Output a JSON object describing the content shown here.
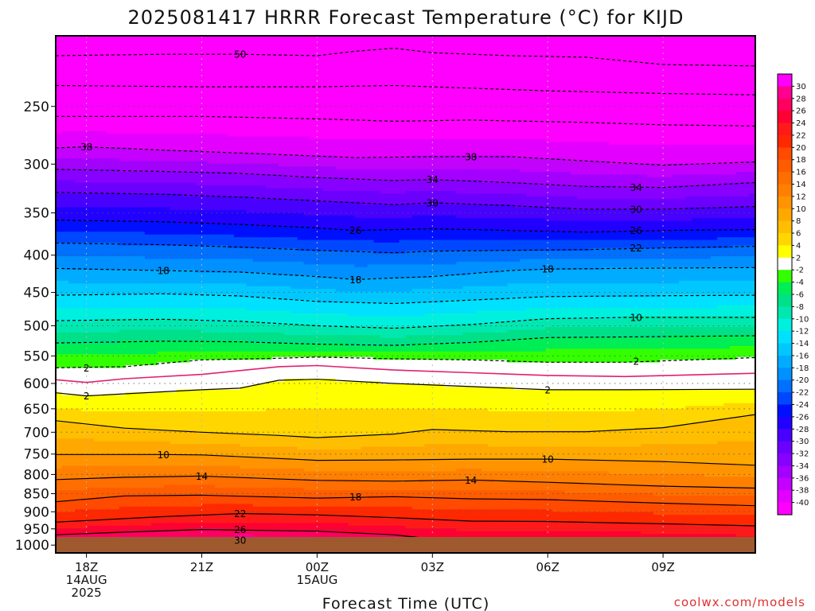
{
  "chart_data": {
    "type": "contour",
    "title": "2025081417 HRRR Forecast Temperature (°C) for KIJD",
    "xlabel": "Forecast Time (UTC)",
    "credit": "coolwx.com/models",
    "y_axis": {
      "scale": "log-pressure",
      "range_hpa": [
        1025,
        200
      ],
      "ticks": [
        250,
        300,
        350,
        400,
        450,
        500,
        550,
        600,
        650,
        700,
        750,
        800,
        850,
        900,
        950,
        1000
      ]
    },
    "x_axis": {
      "range_hours_from_18Z": [
        -0.8,
        17.4
      ],
      "ticks": [
        {
          "hour": 0,
          "lines": [
            "18Z",
            "14AUG",
            "2025"
          ]
        },
        {
          "hour": 3,
          "lines": [
            "21Z"
          ]
        },
        {
          "hour": 6,
          "lines": [
            "00Z",
            "15AUG"
          ]
        },
        {
          "hour": 9,
          "lines": [
            "03Z"
          ]
        },
        {
          "hour": 12,
          "lines": [
            "06Z"
          ]
        },
        {
          "hour": 15,
          "lines": [
            "09Z"
          ]
        }
      ]
    },
    "colorbar": {
      "labels": [
        "30",
        "28",
        "26",
        "24",
        "22",
        "20",
        "18",
        "16",
        "14",
        "12",
        "10",
        "8",
        "6",
        "4",
        "2",
        "-2",
        "-4",
        "-6",
        "-8",
        "-10",
        "-12",
        "-14",
        "-16",
        "-18",
        "-20",
        "-22",
        "-24",
        "-26",
        "-28",
        "-30",
        "-32",
        "-34",
        "-36",
        "-38",
        "-40"
      ],
      "colors": [
        "#ff00ff",
        "#ff0090",
        "#ff0060",
        "#ff0033",
        "#ff1a1a",
        "#ff2800",
        "#ff4a00",
        "#ff5c00",
        "#ff6e00",
        "#ff8000",
        "#ff9400",
        "#ffa800",
        "#ffbe00",
        "#ffd600",
        "#ffff00",
        "#ffffff",
        "#33ff00",
        "#00ee55",
        "#00e088",
        "#00e8b0",
        "#00f0e0",
        "#00e0ff",
        "#00c8ff",
        "#00acff",
        "#0090ff",
        "#0070ff",
        "#0048ff",
        "#0010ff",
        "#2200ff",
        "#4800ff",
        "#6c00ff",
        "#8800ff",
        "#a400ff",
        "#c400ff",
        "#e400ff",
        "#ff00ff"
      ]
    },
    "contours": [
      {
        "value": -50,
        "style": "dashed",
        "points": [
          [
            -0.8,
            213
          ],
          [
            2,
            212
          ],
          [
            4,
            212
          ],
          [
            6,
            213
          ],
          [
            7,
            210
          ],
          [
            8,
            208
          ],
          [
            9,
            211
          ],
          [
            11,
            213
          ],
          [
            13,
            214
          ],
          [
            15,
            219
          ],
          [
            17.4,
            220
          ]
        ],
        "labels": [
          [
            4,
            212
          ]
        ]
      },
      {
        "value": -46,
        "style": "dashed",
        "points": [
          [
            -0.8,
            234
          ],
          [
            3,
            235
          ],
          [
            6,
            235
          ],
          [
            8,
            234
          ],
          [
            10,
            236
          ],
          [
            12,
            238
          ],
          [
            15,
            240
          ],
          [
            17.4,
            241
          ]
        ],
        "labels": []
      },
      {
        "value": -42,
        "style": "dashed",
        "points": [
          [
            -0.8,
            258
          ],
          [
            3,
            258
          ],
          [
            6,
            260
          ],
          [
            8,
            262
          ],
          [
            10,
            261
          ],
          [
            13,
            263
          ],
          [
            15,
            265
          ],
          [
            17.4,
            266
          ]
        ],
        "labels": []
      },
      {
        "value": -38,
        "style": "dashed",
        "points": [
          [
            -0.8,
            285
          ],
          [
            0,
            284
          ],
          [
            2,
            287
          ],
          [
            5,
            291
          ],
          [
            7,
            294
          ],
          [
            9,
            293
          ],
          [
            11,
            293
          ],
          [
            13,
            297
          ],
          [
            15,
            301
          ],
          [
            17.4,
            298
          ]
        ],
        "labels": [
          [
            0,
            284
          ],
          [
            10,
            293
          ]
        ]
      },
      {
        "value": -34,
        "style": "dashed",
        "points": [
          [
            -0.8,
            305
          ],
          [
            2,
            307
          ],
          [
            4,
            309
          ],
          [
            6,
            313
          ],
          [
            8,
            316
          ],
          [
            9,
            315
          ],
          [
            11,
            318
          ],
          [
            13,
            322
          ],
          [
            15,
            323
          ],
          [
            17.4,
            318
          ]
        ],
        "labels": [
          [
            9,
            315
          ],
          [
            14.3,
            323
          ]
        ]
      },
      {
        "value": -30,
        "style": "dashed",
        "points": [
          [
            -0.8,
            328
          ],
          [
            2,
            330
          ],
          [
            4,
            333
          ],
          [
            6,
            337
          ],
          [
            8,
            341
          ],
          [
            9,
            339
          ],
          [
            11,
            342
          ],
          [
            13,
            346
          ],
          [
            15,
            346
          ],
          [
            17.4,
            343
          ]
        ],
        "labels": [
          [
            9,
            339
          ],
          [
            14.3,
            346
          ]
        ]
      },
      {
        "value": -26,
        "style": "dashed",
        "points": [
          [
            -0.8,
            358
          ],
          [
            2,
            360
          ],
          [
            4,
            363
          ],
          [
            6,
            367
          ],
          [
            7,
            370
          ],
          [
            9,
            368
          ],
          [
            11,
            370
          ],
          [
            13,
            372
          ],
          [
            15,
            370
          ],
          [
            17.4,
            369
          ]
        ],
        "labels": [
          [
            7,
            370
          ],
          [
            14.3,
            370
          ]
        ]
      },
      {
        "value": -22,
        "style": "dashed",
        "points": [
          [
            -0.8,
            385
          ],
          [
            2,
            387
          ],
          [
            4,
            390
          ],
          [
            6,
            394
          ],
          [
            8,
            397
          ],
          [
            9,
            395
          ],
          [
            11,
            394
          ],
          [
            13,
            393
          ],
          [
            15,
            391
          ],
          [
            17.4,
            389
          ]
        ],
        "labels": [
          [
            14.3,
            391
          ]
        ]
      },
      {
        "value": -18,
        "style": "dashed",
        "points": [
          [
            -0.8,
            417
          ],
          [
            1,
            419
          ],
          [
            2,
            420
          ],
          [
            4,
            422
          ],
          [
            6,
            428
          ],
          [
            7,
            432
          ],
          [
            9,
            428
          ],
          [
            11,
            420
          ],
          [
            12,
            418
          ],
          [
            14,
            417
          ],
          [
            17.4,
            416
          ]
        ],
        "labels": [
          [
            2,
            420
          ],
          [
            7,
            432
          ],
          [
            12,
            418
          ]
        ]
      },
      {
        "value": -14,
        "style": "dashed",
        "points": [
          [
            -0.8,
            454
          ],
          [
            2,
            452
          ],
          [
            4,
            455
          ],
          [
            6,
            463
          ],
          [
            8,
            466
          ],
          [
            10,
            461
          ],
          [
            12,
            456
          ],
          [
            14,
            455
          ],
          [
            17.4,
            454
          ]
        ],
        "labels": []
      },
      {
        "value": -10,
        "style": "dashed",
        "points": [
          [
            -0.8,
            492
          ],
          [
            2,
            490
          ],
          [
            4,
            493
          ],
          [
            6,
            500
          ],
          [
            8,
            504
          ],
          [
            10,
            498
          ],
          [
            12,
            489
          ],
          [
            14,
            487
          ],
          [
            17.4,
            487
          ]
        ],
        "labels": [
          [
            14.3,
            487
          ]
        ]
      },
      {
        "value": -6,
        "style": "dashed",
        "points": [
          [
            -0.8,
            528
          ],
          [
            2,
            525
          ],
          [
            4,
            526
          ],
          [
            6,
            530
          ],
          [
            8,
            532
          ],
          [
            10,
            527
          ],
          [
            12,
            519
          ],
          [
            14,
            518
          ],
          [
            17.4,
            516
          ]
        ],
        "labels": []
      },
      {
        "value": -2,
        "style": "dashed",
        "points": [
          [
            -0.8,
            571
          ],
          [
            1,
            569
          ],
          [
            3,
            557
          ],
          [
            5,
            554
          ],
          [
            6,
            552
          ],
          [
            8,
            555
          ],
          [
            10,
            557
          ],
          [
            12,
            561
          ],
          [
            14,
            561
          ],
          [
            17.4,
            553
          ]
        ],
        "labels": [
          [
            0,
            571
          ],
          [
            14.3,
            559
          ]
        ]
      },
      {
        "value": 2,
        "style": "solid",
        "points": [
          [
            -0.8,
            618
          ],
          [
            0,
            624
          ],
          [
            1,
            620
          ],
          [
            3,
            612
          ],
          [
            4,
            609
          ],
          [
            5,
            594
          ],
          [
            6,
            592
          ],
          [
            8,
            600
          ],
          [
            10,
            606
          ],
          [
            12,
            612
          ],
          [
            14,
            612
          ],
          [
            17.4,
            611
          ]
        ],
        "labels": [
          [
            0,
            624
          ],
          [
            12,
            612
          ]
        ]
      },
      {
        "value": 6,
        "style": "solid",
        "points": [
          [
            -0.8,
            675
          ],
          [
            1,
            691
          ],
          [
            3,
            700
          ],
          [
            5,
            707
          ],
          [
            6,
            712
          ],
          [
            8,
            704
          ],
          [
            9,
            694
          ],
          [
            11,
            699
          ],
          [
            13,
            699
          ],
          [
            15,
            690
          ],
          [
            17.4,
            662
          ]
        ],
        "labels": []
      },
      {
        "value": 10,
        "style": "solid",
        "points": [
          [
            -0.8,
            751
          ],
          [
            2,
            751
          ],
          [
            3,
            752
          ],
          [
            6,
            765
          ],
          [
            8,
            764
          ],
          [
            10,
            762
          ],
          [
            12,
            762
          ],
          [
            15,
            768
          ],
          [
            17.4,
            777
          ]
        ],
        "labels": [
          [
            2,
            751
          ],
          [
            12,
            762
          ]
        ]
      },
      {
        "value": 14,
        "style": "solid",
        "points": [
          [
            -0.8,
            813
          ],
          [
            1,
            807
          ],
          [
            3,
            804
          ],
          [
            6,
            815
          ],
          [
            8,
            817
          ],
          [
            10,
            814
          ],
          [
            12,
            820
          ],
          [
            15,
            830
          ],
          [
            17.4,
            835
          ]
        ],
        "labels": [
          [
            3,
            804
          ],
          [
            10,
            814
          ]
        ]
      },
      {
        "value": 18,
        "style": "solid",
        "points": [
          [
            -0.8,
            872
          ],
          [
            1,
            856
          ],
          [
            3,
            854
          ],
          [
            6,
            862
          ],
          [
            8,
            858
          ],
          [
            10,
            864
          ],
          [
            12,
            866
          ],
          [
            15,
            876
          ],
          [
            17.4,
            883
          ]
        ],
        "labels": [
          [
            7,
            858
          ]
        ]
      },
      {
        "value": 22,
        "style": "solid",
        "points": [
          [
            -0.8,
            930
          ],
          [
            2,
            914
          ],
          [
            4,
            905
          ],
          [
            6,
            909
          ],
          [
            8,
            917
          ],
          [
            10,
            927
          ],
          [
            12,
            928
          ],
          [
            15,
            935
          ],
          [
            17.4,
            941
          ]
        ],
        "labels": [
          [
            4,
            905
          ]
        ]
      },
      {
        "value": 26,
        "style": "solid",
        "points": [
          [
            -0.8,
            968
          ],
          [
            1,
            960
          ],
          [
            3,
            952
          ],
          [
            6,
            957
          ],
          [
            8,
            968
          ],
          [
            9,
            981
          ],
          [
            11,
            980
          ],
          [
            14,
            983
          ],
          [
            15,
            995
          ],
          [
            17.4,
            1000
          ]
        ],
        "labels": [
          [
            4,
            952
          ]
        ]
      },
      {
        "value": 30,
        "style": "solid",
        "points": [
          [
            3,
            995
          ],
          [
            4,
            984
          ],
          [
            5,
            985
          ],
          [
            6,
            1002
          ],
          [
            7,
            1012
          ]
        ],
        "labels": [
          [
            4,
            984
          ]
        ]
      }
    ],
    "isotherm_0": {
      "value": 0,
      "style": "magenta",
      "points": [
        [
          -0.8,
          593
        ],
        [
          0,
          598
        ],
        [
          1,
          591
        ],
        [
          3,
          583
        ],
        [
          5,
          569
        ],
        [
          6,
          567
        ],
        [
          8,
          575
        ],
        [
          10,
          580
        ],
        [
          12,
          585
        ],
        [
          14,
          587
        ],
        [
          17.4,
          581
        ]
      ]
    },
    "grid": true
  }
}
